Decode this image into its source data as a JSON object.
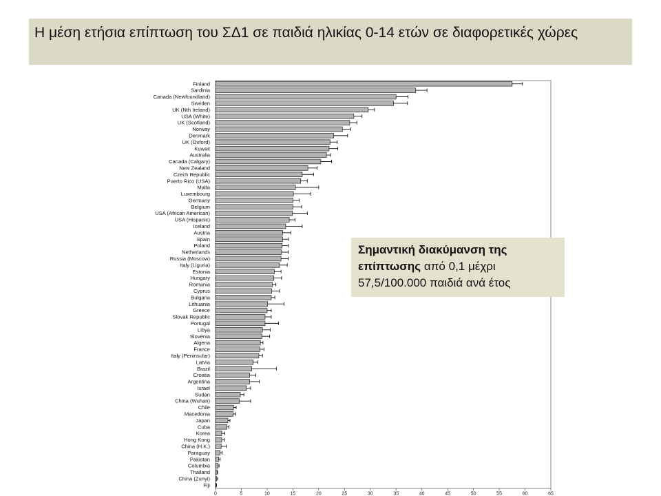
{
  "title": "Η μέση ετήσια επίπτωση  του ΣΔ1 σε παιδιά ηλικίας 0-14 ετών σε διαφορετικές χώρες",
  "note": {
    "bold": "Σημαντική διακύμανση της επίπτωσης",
    "line1_rest": "  από 0,1 μέχρι",
    "line2": "57,5/100.000 παιδιά ανά έτος"
  },
  "colors": {
    "box_bg": "#dcd9c6",
    "bar_fill": "#b4b4b4",
    "bar_stroke": "#333333"
  },
  "chart_data": {
    "type": "bar",
    "orientation": "horizontal",
    "error_bars": true,
    "xlim": [
      0,
      65
    ],
    "xticks": [
      0,
      5,
      10,
      15,
      20,
      25,
      30,
      35,
      40,
      45,
      50,
      55,
      60,
      65
    ],
    "grid": false,
    "categories": [
      "Finland",
      "Sardinia",
      "Canada (Newfoundland)",
      "Sweden",
      "UK (Nth Ireland)",
      "USA (White)",
      "UK (Scotland)",
      "Norway",
      "Denmark",
      "UK (Oxford)",
      "Kuwait",
      "Australia",
      "Canada (Calgary)",
      "New Zealand",
      "Czech Republic",
      "Puerto Rico (USA)",
      "Malta",
      "Luxembourg",
      "Germany",
      "Belgium",
      "USA (African American)",
      "USA (Hispanic)",
      "Iceland",
      "Austria",
      "Spain",
      "Poland",
      "Netherlands",
      "Russia (Moscow)",
      "Italy (Liguria)",
      "Estonia",
      "Hungary",
      "Romania",
      "Cyprus",
      "Bulgaria",
      "Lithuania",
      "Greece",
      "Slovak Republic",
      "Portugal",
      "Libya",
      "Slovenia",
      "Algeria",
      "France",
      "Italy (Peninsular)",
      "Latvia",
      "Brazil",
      "Croatia",
      "Argentina",
      "Israel",
      "Sudan",
      "China (Wuhan)",
      "Chile",
      "Macedonia",
      "Japan",
      "Cuba",
      "Korea",
      "Hong Kong",
      "China (H.K.)",
      "Paraguay",
      "Pakistan",
      "Columbia",
      "Thailand",
      "China (Zunyi)",
      "Fiji"
    ],
    "values": [
      57.5,
      38.8,
      35.0,
      34.5,
      29.6,
      26.8,
      26.0,
      24.6,
      22.9,
      22.2,
      22.0,
      21.5,
      20.4,
      17.9,
      16.8,
      16.5,
      15.5,
      15.1,
      15.0,
      15.0,
      14.9,
      14.3,
      13.6,
      13.0,
      13.0,
      12.9,
      12.8,
      12.7,
      12.4,
      11.4,
      11.3,
      11.0,
      10.9,
      10.8,
      10.1,
      10.0,
      9.6,
      9.6,
      9.1,
      9.0,
      8.7,
      8.6,
      8.4,
      7.3,
      7.0,
      6.6,
      6.6,
      6.0,
      4.8,
      4.6,
      3.5,
      3.4,
      2.4,
      2.2,
      1.2,
      1.2,
      1.1,
      0.9,
      0.6,
      0.5,
      0.3,
      0.2,
      0.1
    ],
    "errors": [
      2,
      2.2,
      2.3,
      2.7,
      1.2,
      1.6,
      1.4,
      1.6,
      2.7,
      1.4,
      1.7,
      0.8,
      2.1,
      1.8,
      2.2,
      1.3,
      4.5,
      3.4,
      1.2,
      1.7,
      2.9,
      1.1,
      3.2,
      1.6,
      1.1,
      1.2,
      1.3,
      1.4,
      1.5,
      1.3,
      1.5,
      0.7,
      1.5,
      0.7,
      3.2,
      0.8,
      1.2,
      2.6,
      1.5,
      1.5,
      0.5,
      0.8,
      0.7,
      0.9,
      4.8,
      1.2,
      1.9,
      0.8,
      0.7,
      2.2,
      0.5,
      0.5,
      0.4,
      0.4,
      0.6,
      0.5,
      1.0,
      0.4,
      0.3,
      0.2,
      0.1,
      0.2,
      0.1
    ]
  }
}
